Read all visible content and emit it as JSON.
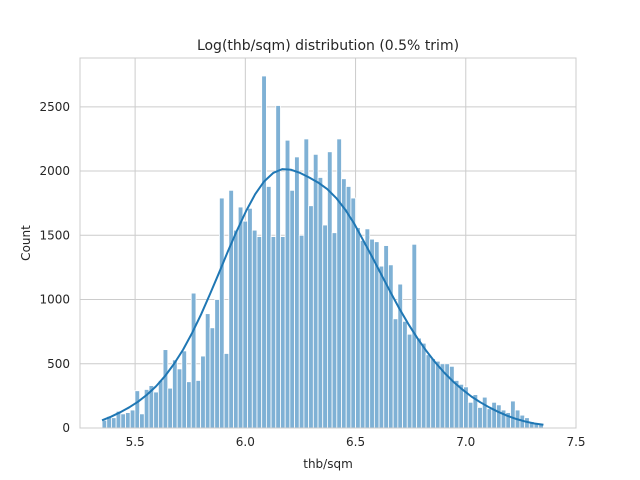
{
  "chart_data": {
    "type": "bar",
    "title": "Log(thb/sqm) distribution (0.5% trim)",
    "xlabel": "thb/sqm",
    "ylabel": "Count",
    "xlim": [
      5.25,
      7.5
    ],
    "ylim": [
      0,
      2880
    ],
    "xticks": [
      5.5,
      6.0,
      6.5,
      7.0,
      7.5
    ],
    "xtick_labels": [
      "5.5",
      "6.0",
      "6.5",
      "7.0",
      "7.5"
    ],
    "yticks": [
      0,
      500,
      1000,
      1500,
      2000,
      2500
    ],
    "ytick_labels": [
      "0",
      "500",
      "1000",
      "1500",
      "2000",
      "2500"
    ],
    "grid": true,
    "bin_start": 5.35,
    "bin_width": 0.0213,
    "values": [
      60,
      90,
      80,
      130,
      110,
      120,
      140,
      290,
      110,
      300,
      330,
      280,
      370,
      610,
      310,
      530,
      460,
      600,
      360,
      1050,
      370,
      560,
      890,
      780,
      1000,
      1790,
      580,
      1850,
      1540,
      1720,
      1610,
      1710,
      1540,
      1490,
      2740,
      1880,
      1490,
      2510,
      1490,
      2240,
      1850,
      2110,
      1500,
      2250,
      1730,
      2130,
      1950,
      1580,
      2150,
      1520,
      2250,
      1940,
      1880,
      1790,
      1560,
      1460,
      1550,
      1470,
      1450,
      1260,
      1420,
      1270,
      850,
      1120,
      830,
      730,
      1430,
      700,
      660,
      570,
      540,
      520,
      500,
      500,
      480,
      370,
      340,
      320,
      200,
      260,
      160,
      240,
      150,
      200,
      180,
      140,
      120,
      210,
      140,
      100,
      80,
      50,
      40,
      30
    ],
    "kde_y": [
      60,
      88,
      122,
      160,
      205,
      260,
      325,
      405,
      500,
      610,
      740,
      885,
      1045,
      1210,
      1380,
      1540,
      1690,
      1820,
      1920,
      1985,
      2015,
      2010,
      1985,
      1950,
      1910,
      1860,
      1790,
      1700,
      1590,
      1460,
      1330,
      1195,
      1060,
      930,
      810,
      700,
      600,
      510,
      430,
      360,
      300,
      245,
      200,
      160,
      125,
      95,
      70,
      50,
      35,
      25
    ],
    "series": [
      {
        "name": "",
        "kind": "histogram",
        "color": "#7fb1d5"
      },
      {
        "name": "",
        "kind": "kde",
        "color": "#1f77b4"
      }
    ]
  }
}
